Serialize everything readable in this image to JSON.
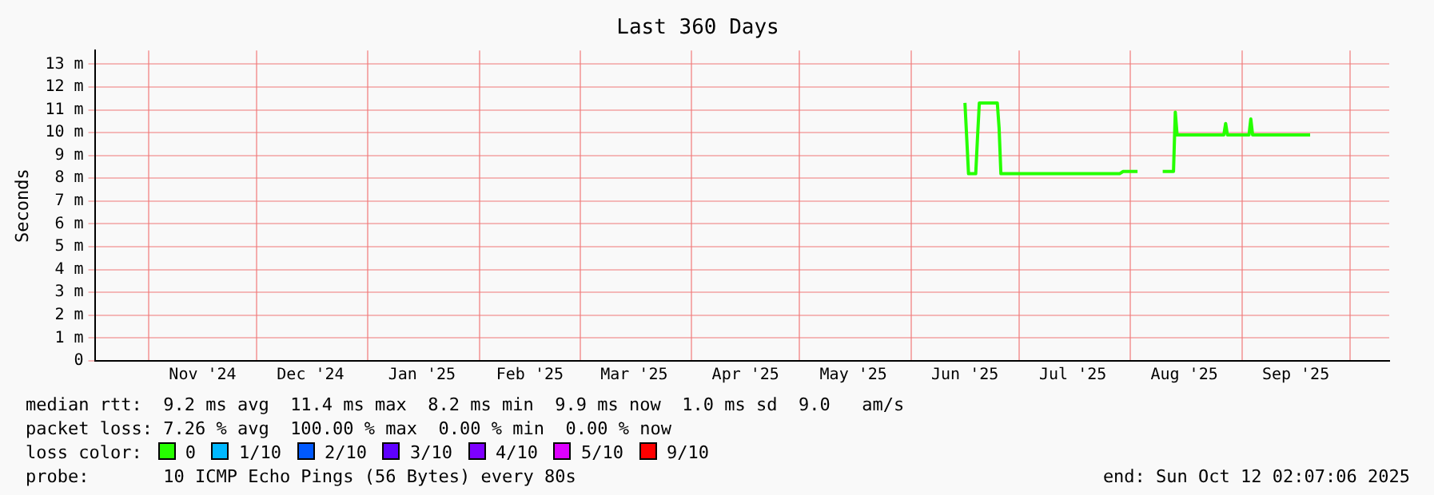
{
  "chart_data": {
    "type": "line",
    "title": "Last 360 Days",
    "ylabel": "Seconds",
    "legend_title": "loss color:",
    "legend": "bottom",
    "grid": true,
    "marker": "none",
    "line_style": "solid",
    "xlim": [
      "2024-10-17",
      "2025-10-12"
    ],
    "xticks": [
      {
        "value": "2024-11-01",
        "label": null
      },
      {
        "value": "2024-11-16",
        "label": "Nov '24"
      },
      {
        "value": "2024-12-01",
        "label": null
      },
      {
        "value": "2024-12-16",
        "label": "Dec '24"
      },
      {
        "value": "2025-01-01",
        "label": null
      },
      {
        "value": "2025-01-16",
        "label": "Jan '25"
      },
      {
        "value": "2025-02-01",
        "label": null
      },
      {
        "value": "2025-02-15",
        "label": "Feb '25"
      },
      {
        "value": "2025-03-01",
        "label": null
      },
      {
        "value": "2025-03-16",
        "label": "Mar '25"
      },
      {
        "value": "2025-04-01",
        "label": null
      },
      {
        "value": "2025-04-16",
        "label": "Apr '25"
      },
      {
        "value": "2025-05-01",
        "label": null
      },
      {
        "value": "2025-05-16",
        "label": "May '25"
      },
      {
        "value": "2025-06-01",
        "label": null
      },
      {
        "value": "2025-06-16",
        "label": "Jun '25"
      },
      {
        "value": "2025-07-01",
        "label": null
      },
      {
        "value": "2025-07-16",
        "label": "Jul '25"
      },
      {
        "value": "2025-08-01",
        "label": null
      },
      {
        "value": "2025-08-16",
        "label": "Aug '25"
      },
      {
        "value": "2025-09-01",
        "label": null
      },
      {
        "value": "2025-09-16",
        "label": "Sep '25"
      },
      {
        "value": "2025-10-01",
        "label": null
      }
    ],
    "ylim": [
      0,
      13.6
    ],
    "yticks": [
      0,
      {
        "value": 1,
        "label": "1 m"
      },
      {
        "value": 2,
        "label": "2 m"
      },
      {
        "value": 3,
        "label": "3 m"
      },
      {
        "value": 4,
        "label": "4 m"
      },
      {
        "value": 5,
        "label": "5 m"
      },
      {
        "value": 6,
        "label": "6 m"
      },
      {
        "value": 7,
        "label": "7 m"
      },
      {
        "value": 8,
        "label": "8 m"
      },
      {
        "value": 9,
        "label": "9 m"
      },
      {
        "value": 10,
        "label": "10 m"
      },
      {
        "value": 11,
        "label": "11 m"
      },
      {
        "value": 12,
        "label": "12 m"
      },
      {
        "value": 13,
        "label": "13 m"
      }
    ],
    "x": [
      "2025-06-16",
      "2025-06-17",
      "2025-06-19",
      "2025-06-19T12:00",
      "2025-06-20",
      "2025-06-25",
      "2025-06-25T12:00",
      "2025-06-26",
      "2025-07-10",
      "2025-07-29",
      "2025-07-30",
      "2025-08-03",
      "2025-08-06",
      "2025-08-10",
      "2025-08-13",
      "2025-08-13T12:00",
      "2025-08-14",
      "2025-08-27",
      "2025-08-27T12:00",
      "2025-08-28",
      "2025-09-03",
      "2025-09-03T12:00",
      "2025-09-04",
      "2025-09-20"
    ],
    "series": [
      {
        "name": "0",
        "color": "#26ff00",
        "values": [
          11.3,
          8.2,
          8.2,
          9.8,
          11.3,
          11.3,
          10.2,
          8.2,
          8.2,
          8.2,
          8.3,
          8.3,
          null,
          8.3,
          8.3,
          10.9,
          9.9,
          9.9,
          10.4,
          9.9,
          9.9,
          10.6,
          9.9,
          9.9
        ]
      },
      {
        "name": "1/10",
        "color": "#00b8ff",
        "values": [
          null,
          null,
          null,
          null,
          null,
          null,
          null,
          null,
          null,
          null,
          null,
          null,
          null,
          null,
          null,
          null,
          null,
          null,
          null,
          null,
          null,
          null,
          null,
          null
        ]
      },
      {
        "name": "2/10",
        "color": "#0059ff",
        "values": [
          null,
          null,
          null,
          null,
          null,
          null,
          null,
          null,
          null,
          null,
          null,
          null,
          null,
          null,
          null,
          null,
          null,
          null,
          null,
          null,
          null,
          null,
          null,
          null
        ]
      },
      {
        "name": "3/10",
        "color": "#5e00ff",
        "values": [
          null,
          null,
          null,
          null,
          null,
          null,
          null,
          null,
          null,
          null,
          null,
          null,
          null,
          null,
          null,
          null,
          null,
          null,
          null,
          null,
          null,
          null,
          null,
          null
        ]
      },
      {
        "name": "4/10",
        "color": "#7e00ff",
        "values": [
          null,
          null,
          null,
          null,
          null,
          null,
          null,
          null,
          null,
          null,
          null,
          null,
          null,
          null,
          null,
          null,
          null,
          null,
          null,
          null,
          null,
          null,
          null,
          null
        ]
      },
      {
        "name": "5/10",
        "color": "#dd00ff",
        "values": [
          null,
          null,
          null,
          null,
          null,
          null,
          null,
          null,
          null,
          null,
          null,
          null,
          null,
          null,
          null,
          null,
          null,
          null,
          null,
          null,
          null,
          null,
          null,
          null
        ]
      },
      {
        "name": "9/10",
        "color": "#ff0000",
        "values": [
          null,
          null,
          null,
          null,
          null,
          null,
          null,
          null,
          null,
          null,
          null,
          null,
          null,
          null,
          null,
          null,
          null,
          null,
          null,
          null,
          null,
          null,
          null,
          null
        ]
      }
    ],
    "annotations": [
      "median rtt:  9.2 ms avg  11.4 ms max  8.2 ms min  9.9 ms now  1.0 ms sd  9.0   am/s",
      "packet loss: 7.26 % avg  100.00 % max  0.00 % min  0.00 % now",
      "probe:       10 ICMP Echo Pings (56 Bytes) every 80s",
      "end: Sun Oct 12 02:07:06 2025"
    ]
  }
}
